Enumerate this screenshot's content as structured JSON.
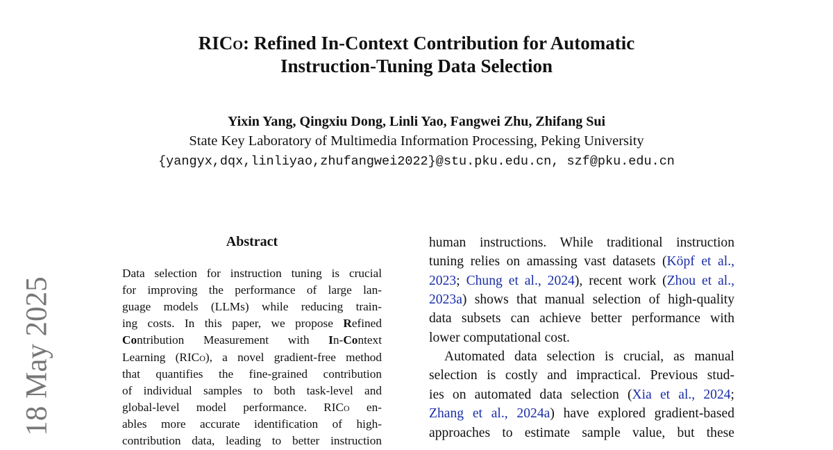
{
  "title": {
    "line1": [
      {
        "t": "RIC"
      },
      {
        "t": "o",
        "sc": true
      },
      {
        "t": ": Refined In-Context Contribution for Automatic"
      }
    ],
    "line2": [
      {
        "t": "Instruction-Tuning Data Selection"
      }
    ]
  },
  "authors": "Yixin Yang, Qingxiu Dong, Linli Yao, Fangwei Zhu, Zhifang Sui",
  "affiliation": "State Key Laboratory of Multimedia Information Processing, Peking University",
  "email": "{yangyx,dqx,linliyao,zhufangwei2022}@stu.pku.edu.cn, szf@pku.edu.cn",
  "arxiv_date": "18 May 2025",
  "abstract": {
    "heading": "Abstract",
    "lines": [
      [
        {
          "t": "Data selection for instruction tuning is crucial"
        }
      ],
      [
        {
          "t": "for improving the performance of large lan-"
        }
      ],
      [
        {
          "t": "guage models (LLMs) while reducing train-"
        }
      ],
      [
        {
          "t": "ing costs.  In this paper, we propose "
        },
        {
          "t": "R",
          "b": true
        },
        {
          "t": "efined"
        }
      ],
      [
        {
          "t": "Co",
          "b": true
        },
        {
          "t": "ntribution Measurement with "
        },
        {
          "t": "I",
          "b": true
        },
        {
          "t": "n-"
        },
        {
          "t": "Co",
          "b": true
        },
        {
          "t": "ntext"
        }
      ],
      [
        {
          "t": "Learning (RIC"
        },
        {
          "t": "o",
          "sc": true
        },
        {
          "t": "), a novel gradient-free method"
        }
      ],
      [
        {
          "t": "that quantifies the fine-grained contribution"
        }
      ],
      [
        {
          "t": "of individual samples to both task-level and"
        }
      ],
      [
        {
          "t": "global-level model performance.  RIC"
        },
        {
          "t": "o",
          "sc": true
        },
        {
          "t": " en-"
        }
      ],
      [
        {
          "t": "ables more accurate identification of high-"
        }
      ],
      [
        {
          "t": "contribution data, leading to better instruction"
        }
      ]
    ]
  },
  "intro": {
    "lines": [
      [
        {
          "t": "human instructions. While traditional instruction"
        }
      ],
      [
        {
          "t": "tuning relies on amassing vast datasets ("
        },
        {
          "t": "Köpf et al.,",
          "link": true
        }
      ],
      [
        {
          "t": "2023",
          "link": true
        },
        {
          "t": "; "
        },
        {
          "t": "Chung et al., 2024",
          "link": true
        },
        {
          "t": "), recent work ("
        },
        {
          "t": "Zhou et al.,",
          "link": true
        }
      ],
      [
        {
          "t": "2023a",
          "link": true
        },
        {
          "t": ") shows that manual selection of high-quality"
        }
      ],
      [
        {
          "t": "data subsets can achieve better performance with"
        }
      ],
      [
        {
          "t": "lower computational cost."
        }
      ],
      [
        {
          "t": "Automated data selection is crucial, as manual"
        }
      ],
      [
        {
          "t": "selection is costly and impractical. Previous stud-"
        }
      ],
      [
        {
          "t": "ies on automated data selection ("
        },
        {
          "t": "Xia et al., 2024",
          "link": true
        },
        {
          "t": ";"
        }
      ],
      [
        {
          "t": "Zhang et al., 2024a",
          "link": true
        },
        {
          "t": ") have explored gradient-based"
        }
      ],
      [
        {
          "t": "approaches to estimate sample value, but these"
        }
      ]
    ]
  },
  "colors": {
    "link": "#1a2ea8",
    "date": "#777777"
  }
}
